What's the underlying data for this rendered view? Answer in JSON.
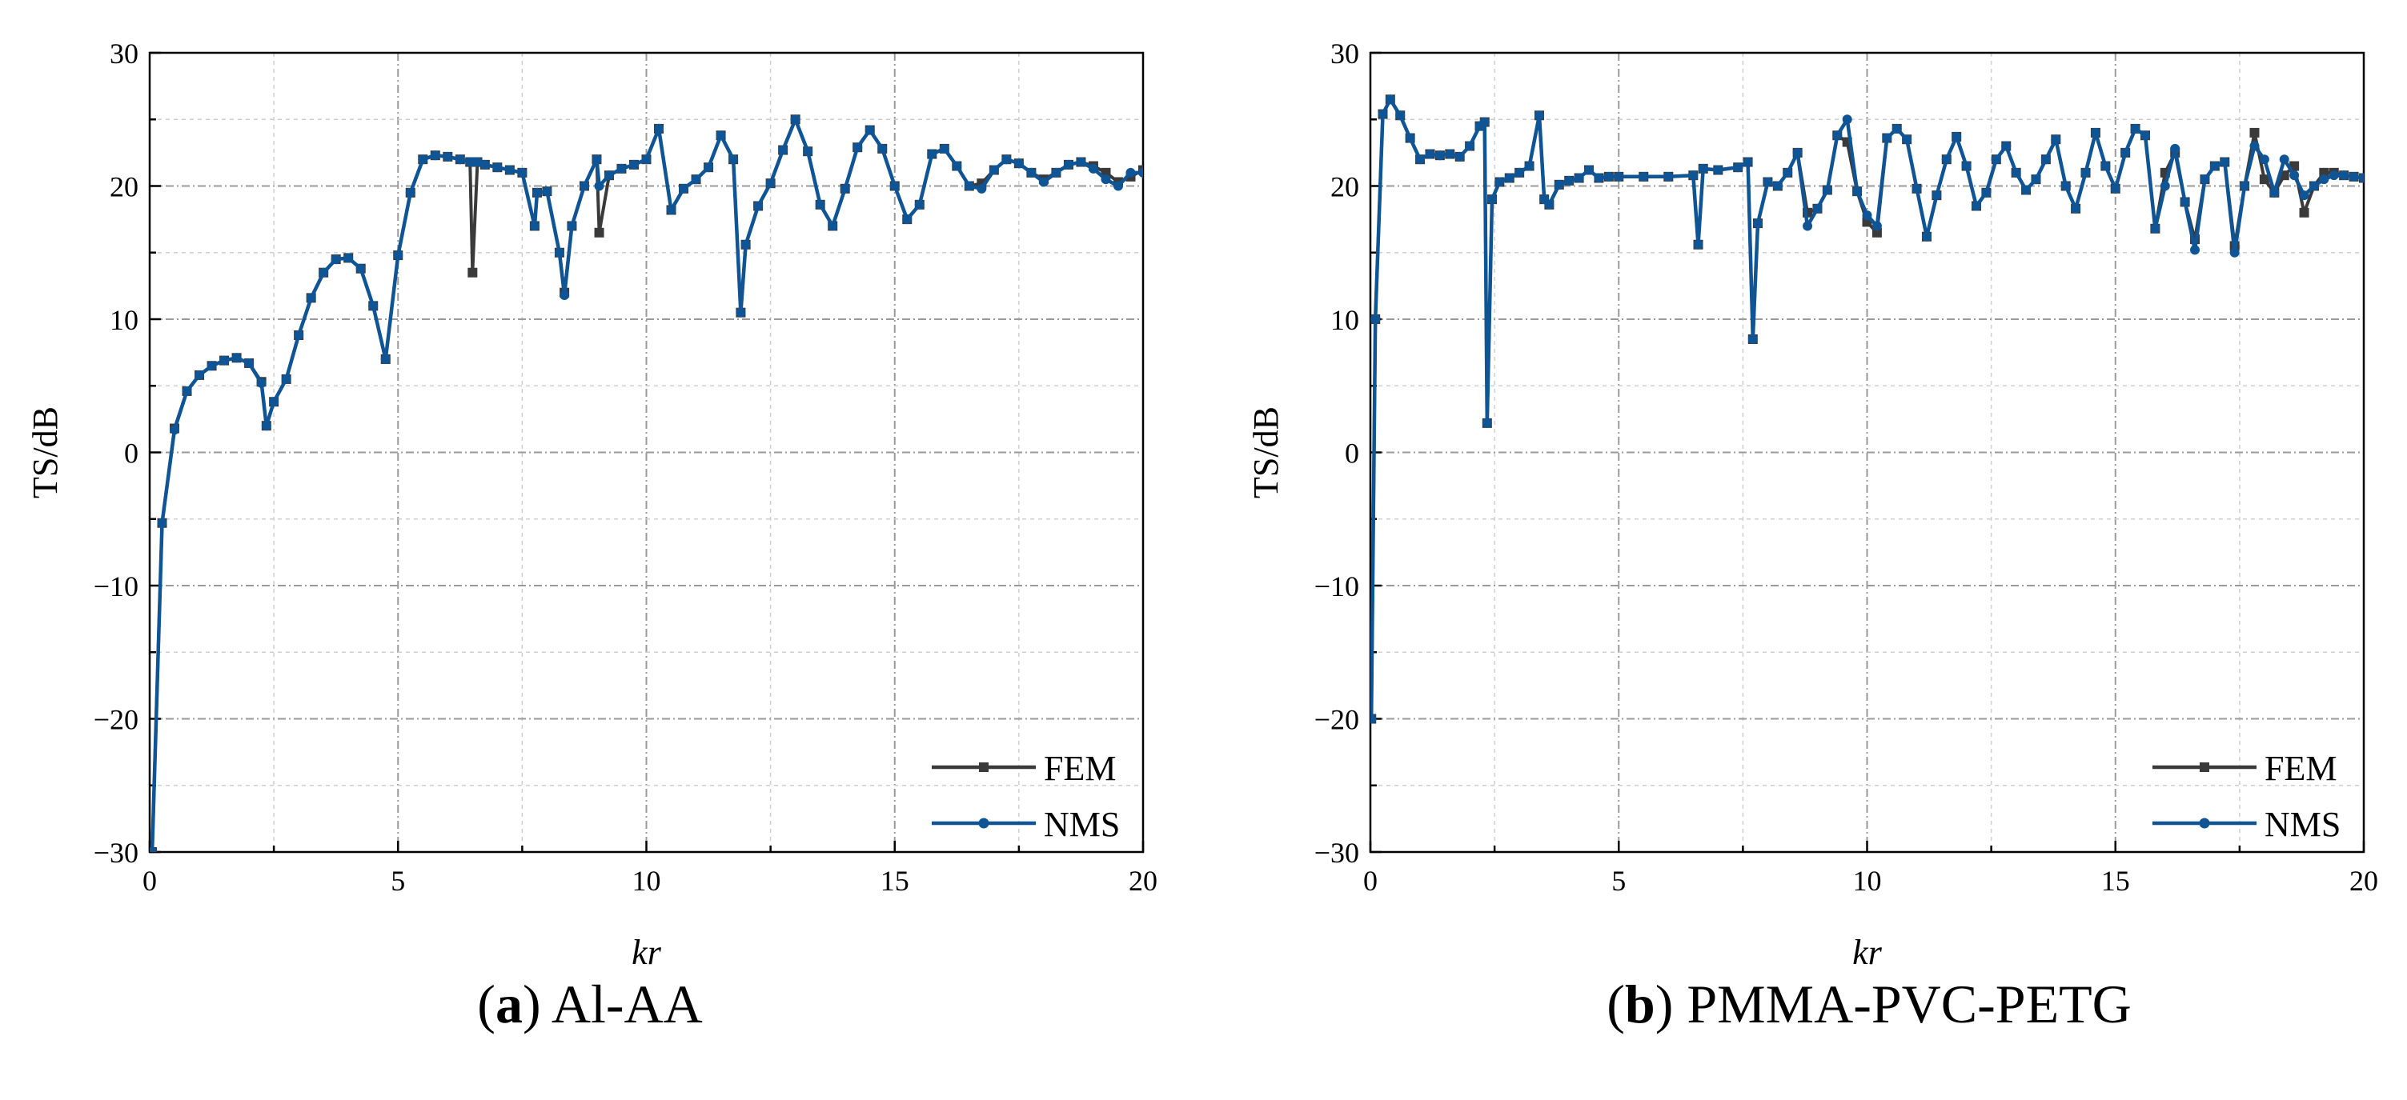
{
  "chart_data": [
    {
      "type": "line",
      "panel_letter": "a",
      "caption_text": "Al-AA",
      "xlabel": "kr",
      "ylabel": "TS/dB",
      "xlim": [
        0,
        20
      ],
      "ylim": [
        -30,
        30
      ],
      "xticks": [
        0,
        5,
        10,
        15,
        20
      ],
      "yticks": [
        -30,
        -20,
        -10,
        0,
        10,
        20,
        30
      ],
      "grid": true,
      "legend_position": "bottom-right",
      "series": [
        {
          "name": "FEM",
          "color": "#3a3a3a",
          "marker": "square",
          "x": [
            0.05,
            0.25,
            0.5,
            0.75,
            1.0,
            1.25,
            1.5,
            1.75,
            2.0,
            2.25,
            2.35,
            2.5,
            2.75,
            3.0,
            3.25,
            3.5,
            3.75,
            4.0,
            4.25,
            4.5,
            4.75,
            5.0,
            5.25,
            5.5,
            5.75,
            6.0,
            6.25,
            6.45,
            6.5,
            6.6,
            6.75,
            7.0,
            7.25,
            7.5,
            7.75,
            7.8,
            8.0,
            8.25,
            8.35,
            8.5,
            8.75,
            9.0,
            9.05,
            9.25,
            9.5,
            9.75,
            10.0,
            10.25,
            10.5,
            10.75,
            11.0,
            11.25,
            11.5,
            11.75,
            11.9,
            12.0,
            12.25,
            12.5,
            12.75,
            13.0,
            13.25,
            13.5,
            13.75,
            14.0,
            14.25,
            14.5,
            14.75,
            15.0,
            15.25,
            15.5,
            15.75,
            16.0,
            16.25,
            16.5,
            16.75,
            17.0,
            17.25,
            17.5,
            17.75,
            18.0,
            18.25,
            18.5,
            18.75,
            19.0,
            19.25,
            19.5,
            19.75,
            20.0
          ],
          "y": [
            -30,
            -5.3,
            1.8,
            4.6,
            5.8,
            6.5,
            6.9,
            7.1,
            6.7,
            5.3,
            2.0,
            3.8,
            5.5,
            8.8,
            11.6,
            13.5,
            14.5,
            14.6,
            13.8,
            11.0,
            7.0,
            14.8,
            19.5,
            22.0,
            22.3,
            22.2,
            22.0,
            21.8,
            13.5,
            21.8,
            21.6,
            21.4,
            21.2,
            21.0,
            17.0,
            19.5,
            19.6,
            15.0,
            12.0,
            17.0,
            20.0,
            22.0,
            16.5,
            20.8,
            21.3,
            21.6,
            22.0,
            24.3,
            18.2,
            19.8,
            20.5,
            21.4,
            23.8,
            22.0,
            10.5,
            15.6,
            18.5,
            20.2,
            22.7,
            25.0,
            22.6,
            18.6,
            17.0,
            19.8,
            22.9,
            24.2,
            22.8,
            20.0,
            17.5,
            18.6,
            22.4,
            22.8,
            21.5,
            20.0,
            20.2,
            21.2,
            22.0,
            21.7,
            21.0,
            20.5,
            21.0,
            21.6,
            21.8,
            21.5,
            21.0,
            20.3,
            20.7,
            21.2
          ]
        },
        {
          "name": "NMS",
          "color": "#0f5596",
          "marker": "circle",
          "x": [
            0.05,
            0.25,
            0.5,
            0.75,
            1.0,
            1.25,
            1.5,
            1.75,
            2.0,
            2.25,
            2.35,
            2.5,
            2.75,
            3.0,
            3.25,
            3.5,
            3.75,
            4.0,
            4.25,
            4.5,
            4.75,
            5.0,
            5.25,
            5.5,
            5.75,
            6.0,
            6.25,
            6.45,
            6.5,
            6.6,
            6.75,
            7.0,
            7.25,
            7.5,
            7.75,
            7.8,
            8.0,
            8.25,
            8.35,
            8.5,
            8.75,
            9.0,
            9.05,
            9.25,
            9.5,
            9.75,
            10.0,
            10.25,
            10.5,
            10.75,
            11.0,
            11.25,
            11.5,
            11.75,
            11.9,
            12.0,
            12.25,
            12.5,
            12.75,
            13.0,
            13.25,
            13.5,
            13.75,
            14.0,
            14.25,
            14.5,
            14.75,
            15.0,
            15.25,
            15.5,
            15.75,
            16.0,
            16.25,
            16.5,
            16.75,
            17.0,
            17.25,
            17.5,
            17.75,
            18.0,
            18.25,
            18.5,
            18.75,
            19.0,
            19.25,
            19.5,
            19.75,
            20.0
          ],
          "y": [
            -30,
            -5.3,
            1.7,
            4.6,
            5.8,
            6.5,
            6.9,
            7.1,
            6.7,
            5.2,
            2.0,
            3.8,
            5.5,
            8.8,
            11.6,
            13.5,
            14.5,
            14.6,
            13.8,
            11.0,
            7.0,
            14.8,
            19.5,
            22.0,
            22.3,
            22.2,
            22.0,
            21.8,
            21.8,
            21.8,
            21.6,
            21.4,
            21.2,
            21.0,
            17.0,
            19.5,
            19.6,
            15.0,
            11.8,
            17.0,
            20.0,
            22.0,
            20.0,
            20.8,
            21.3,
            21.6,
            22.0,
            24.3,
            18.2,
            19.8,
            20.5,
            21.4,
            23.8,
            22.0,
            10.5,
            15.6,
            18.5,
            20.2,
            22.7,
            25.0,
            22.6,
            18.6,
            17.0,
            19.8,
            22.9,
            24.2,
            22.8,
            20.0,
            17.5,
            18.6,
            22.4,
            22.8,
            21.5,
            20.0,
            19.8,
            21.2,
            22.0,
            21.7,
            21.0,
            20.3,
            21.0,
            21.6,
            21.8,
            21.3,
            20.5,
            20.0,
            21.0,
            21.0
          ]
        }
      ]
    },
    {
      "type": "line",
      "panel_letter": "b",
      "caption_text": "PMMA-PVC-PETG",
      "xlabel": "kr",
      "ylabel": "TS/dB",
      "xlim": [
        0,
        20
      ],
      "ylim": [
        -30,
        30
      ],
      "xticks": [
        0,
        5,
        10,
        15,
        20
      ],
      "yticks": [
        -30,
        -20,
        -10,
        0,
        10,
        20,
        30
      ],
      "grid": true,
      "legend_position": "bottom-right",
      "series": [
        {
          "name": "FEM",
          "color": "#3a3a3a",
          "marker": "square",
          "x": [
            0.02,
            0.1,
            0.25,
            0.4,
            0.6,
            0.8,
            1.0,
            1.2,
            1.4,
            1.6,
            1.8,
            2.0,
            2.2,
            2.3,
            2.35,
            2.45,
            2.6,
            2.8,
            3.0,
            3.2,
            3.4,
            3.5,
            3.6,
            3.8,
            4.0,
            4.2,
            4.4,
            4.6,
            4.8,
            5.0,
            5.5,
            6.0,
            6.5,
            6.6,
            6.7,
            7.0,
            7.4,
            7.6,
            7.7,
            7.8,
            8.0,
            8.2,
            8.4,
            8.6,
            8.8,
            9.0,
            9.2,
            9.4,
            9.6,
            9.8,
            10.0,
            10.2,
            10.4,
            10.6,
            10.8,
            11.0,
            11.2,
            11.4,
            11.6,
            11.8,
            12.0,
            12.2,
            12.4,
            12.6,
            12.8,
            13.0,
            13.2,
            13.4,
            13.6,
            13.8,
            14.0,
            14.2,
            14.4,
            14.6,
            14.8,
            15.0,
            15.2,
            15.4,
            15.6,
            15.8,
            16.0,
            16.2,
            16.4,
            16.6,
            16.8,
            17.0,
            17.2,
            17.4,
            17.6,
            17.8,
            18.0,
            18.2,
            18.4,
            18.6,
            18.8,
            19.0,
            19.2,
            19.4,
            19.6,
            19.8,
            20.0
          ],
          "y": [
            -20,
            10,
            25.4,
            26.5,
            25.3,
            23.6,
            22.0,
            22.4,
            22.3,
            22.4,
            22.2,
            23.0,
            24.5,
            24.8,
            2.2,
            19.0,
            20.3,
            20.6,
            21.0,
            21.5,
            25.3,
            19.0,
            18.6,
            20.1,
            20.4,
            20.6,
            21.2,
            20.6,
            20.7,
            20.7,
            20.7,
            20.7,
            20.8,
            15.6,
            21.3,
            21.2,
            21.4,
            21.8,
            8.5,
            17.2,
            20.3,
            20.0,
            21.0,
            22.5,
            18.0,
            18.3,
            19.7,
            23.8,
            23.3,
            19.6,
            17.3,
            16.5,
            23.6,
            24.3,
            23.5,
            19.8,
            16.2,
            19.3,
            22.0,
            23.7,
            21.5,
            18.5,
            19.5,
            22.0,
            23.0,
            21.0,
            19.7,
            20.5,
            22.0,
            23.5,
            20.0,
            18.3,
            21.0,
            24.0,
            21.5,
            19.8,
            22.5,
            24.3,
            23.8,
            16.8,
            21.0,
            22.5,
            18.8,
            16.0,
            20.5,
            21.5,
            21.8,
            15.5,
            20.0,
            24.0,
            20.5,
            19.5,
            20.8,
            21.5,
            18.0,
            20.0,
            21.0,
            21.0,
            20.8,
            20.7,
            20.6
          ]
        },
        {
          "name": "NMS",
          "color": "#0f5596",
          "marker": "circle",
          "x": [
            0.02,
            0.1,
            0.25,
            0.4,
            0.6,
            0.8,
            1.0,
            1.2,
            1.4,
            1.6,
            1.8,
            2.0,
            2.2,
            2.3,
            2.35,
            2.45,
            2.6,
            2.8,
            3.0,
            3.2,
            3.4,
            3.5,
            3.6,
            3.8,
            4.0,
            4.2,
            4.4,
            4.6,
            4.8,
            5.0,
            5.5,
            6.0,
            6.5,
            6.6,
            6.7,
            7.0,
            7.4,
            7.6,
            7.7,
            7.8,
            8.0,
            8.2,
            8.4,
            8.6,
            8.8,
            9.0,
            9.2,
            9.4,
            9.6,
            9.8,
            10.0,
            10.2,
            10.4,
            10.6,
            10.8,
            11.0,
            11.2,
            11.4,
            11.6,
            11.8,
            12.0,
            12.2,
            12.4,
            12.6,
            12.8,
            13.0,
            13.2,
            13.4,
            13.6,
            13.8,
            14.0,
            14.2,
            14.4,
            14.6,
            14.8,
            15.0,
            15.2,
            15.4,
            15.6,
            15.8,
            16.0,
            16.2,
            16.4,
            16.6,
            16.8,
            17.0,
            17.2,
            17.4,
            17.6,
            17.8,
            18.0,
            18.2,
            18.4,
            18.6,
            18.8,
            19.0,
            19.2,
            19.4,
            19.6,
            19.8,
            20.0
          ],
          "y": [
            -20,
            10,
            25.4,
            26.5,
            25.3,
            23.6,
            22.0,
            22.4,
            22.3,
            22.4,
            22.2,
            23.0,
            24.5,
            24.8,
            2.2,
            19.0,
            20.3,
            20.6,
            21.0,
            21.5,
            25.3,
            19.0,
            18.6,
            20.1,
            20.4,
            20.6,
            21.2,
            20.6,
            20.7,
            20.7,
            20.7,
            20.7,
            20.8,
            15.6,
            21.3,
            21.2,
            21.4,
            21.8,
            8.5,
            17.2,
            20.3,
            20.0,
            21.0,
            22.5,
            17.0,
            18.3,
            19.7,
            23.8,
            25.0,
            19.6,
            17.8,
            17.0,
            23.6,
            24.3,
            23.5,
            19.8,
            16.2,
            19.3,
            22.0,
            23.7,
            21.5,
            18.5,
            19.5,
            22.0,
            23.0,
            21.0,
            19.7,
            20.5,
            22.0,
            23.5,
            20.0,
            18.3,
            21.0,
            24.0,
            21.5,
            19.8,
            22.5,
            24.3,
            23.8,
            16.8,
            20.0,
            22.8,
            18.8,
            15.2,
            20.5,
            21.5,
            21.8,
            15.0,
            20.0,
            23.0,
            22.0,
            19.5,
            22.0,
            20.8,
            19.3,
            20.0,
            20.5,
            20.8,
            20.8,
            20.7,
            20.6
          ]
        }
      ]
    }
  ]
}
